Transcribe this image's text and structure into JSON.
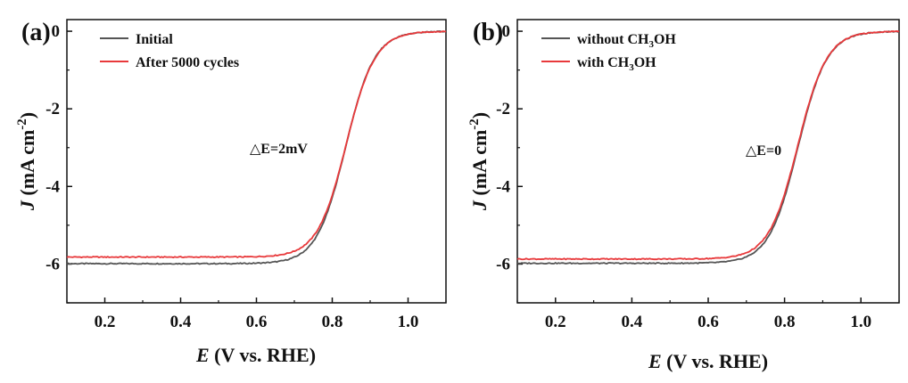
{
  "chart_data": [
    {
      "panel_label": "(a)",
      "type": "line",
      "xlabel_symbol": "E",
      "xlabel_rest": " (V vs. RHE)",
      "ylabel_symbol": "J",
      "ylabel_rest": " (mA cm",
      "ylabel_exp": "-2",
      "ylabel_close": ")",
      "xlim": [
        0.1,
        1.1
      ],
      "ylim": [
        -7,
        0.3
      ],
      "xticks": [
        0.2,
        0.4,
        0.6,
        0.8,
        1.0
      ],
      "xtick_labels": [
        "0.2",
        "0.4",
        "0.6",
        "0.8",
        "1.0"
      ],
      "yticks": [
        0,
        -2,
        -4,
        -6
      ],
      "ytick_labels": [
        "0",
        "-2",
        "-4",
        "-6"
      ],
      "legend_position": "top-left",
      "annotation": "△E=2mV",
      "series": [
        {
          "name": "Initial",
          "color": "#555555",
          "jl": -5.99,
          "e_half": 0.835,
          "k": 0.038
        },
        {
          "name": "After 5000 cycles",
          "color": "#e8393b",
          "jl": -5.82,
          "e_half": 0.837,
          "k": 0.038
        }
      ]
    },
    {
      "panel_label": "(b)",
      "type": "line",
      "xlabel_symbol": "E",
      "xlabel_rest": " (V vs. RHE)",
      "ylabel_symbol": "J",
      "ylabel_rest": " (mA cm",
      "ylabel_exp": "-2",
      "ylabel_close": ")",
      "xlim": [
        0.1,
        1.1
      ],
      "ylim": [
        -7,
        0.3
      ],
      "xticks": [
        0.2,
        0.4,
        0.6,
        0.8,
        1.0
      ],
      "xtick_labels": [
        "0.2",
        "0.4",
        "0.6",
        "0.8",
        "1.0"
      ],
      "yticks": [
        0,
        -2,
        -4,
        -6
      ],
      "ytick_labels": [
        "0",
        "-2",
        "-4",
        "-6"
      ],
      "legend_position": "top-left",
      "annotation": "△E=0",
      "series": [
        {
          "name": "without CH3OH",
          "name_parts": [
            "without CH",
            "3",
            "OH"
          ],
          "color": "#555555",
          "jl": -5.98,
          "e_half": 0.835,
          "k": 0.038
        },
        {
          "name": "with CH3OH",
          "name_parts": [
            "with CH",
            "3",
            "OH"
          ],
          "color": "#e8393b",
          "jl": -5.87,
          "e_half": 0.835,
          "k": 0.038
        }
      ]
    }
  ]
}
